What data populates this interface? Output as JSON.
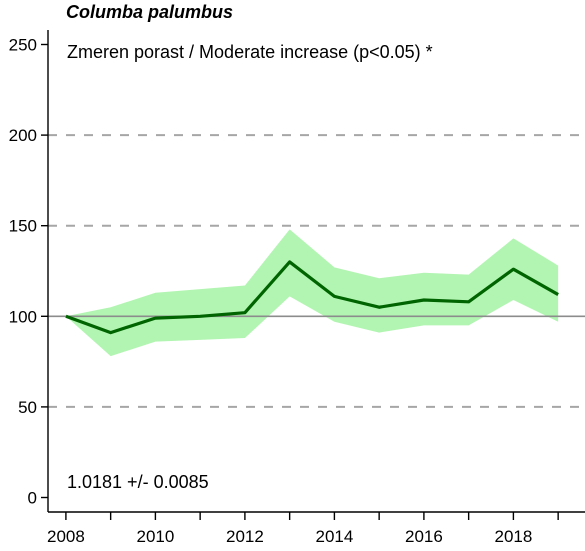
{
  "chart_data": {
    "type": "line",
    "title": "Columba palumbus",
    "subtitle": "Zmeren porast / Moderate increase (p<0.05) *",
    "footnote": "1.0181 +/- 0.0085",
    "x": [
      2008,
      2009,
      2010,
      2011,
      2012,
      2013,
      2014,
      2015,
      2016,
      2017,
      2018,
      2019
    ],
    "series": [
      {
        "values": [
          100,
          91,
          99,
          100,
          102,
          130,
          111,
          105,
          109,
          108,
          126,
          112
        ],
        "lower": [
          100,
          78,
          86,
          87,
          88,
          111,
          97,
          91,
          95,
          95,
          109,
          97
        ],
        "upper": [
          100,
          105,
          113,
          115,
          117,
          148,
          127,
          121,
          124,
          123,
          143,
          128
        ],
        "color": "#006400",
        "band_color": "#b2f5b2"
      }
    ],
    "xlim": [
      2007.6,
      2019.6
    ],
    "ylim": [
      -8,
      258
    ],
    "yticks": [
      0,
      50,
      100,
      150,
      200,
      250
    ],
    "ytick_labels": [
      "0",
      "50",
      "100",
      "150",
      "200",
      "250"
    ],
    "xticks": [
      2008,
      2009,
      2010,
      2011,
      2012,
      2013,
      2014,
      2015,
      2016,
      2017,
      2018,
      2019
    ],
    "xtick_labels": [
      "2008",
      "2010",
      "2012",
      "2014",
      "2016",
      "2018"
    ],
    "xtick_label_values": [
      2008,
      2010,
      2012,
      2014,
      2016,
      2018
    ],
    "gridlines": [
      50,
      150,
      200
    ],
    "baseline": 100,
    "grid": "dashed"
  }
}
